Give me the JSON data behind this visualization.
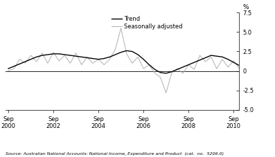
{
  "ylabel_right": "%",
  "source": "Source: Australian National Accounts: National Income, Expenditure and Product  (cat.  no.  5206.0)",
  "ylim": [
    -5.0,
    7.5
  ],
  "yticks": [
    -5.0,
    -2.5,
    0.0,
    2.5,
    5.0,
    7.5
  ],
  "ytick_labels": [
    "-5.0",
    "-2.5",
    "0",
    "2.5",
    "5.0",
    "7.5"
  ],
  "xtick_labels": [
    "Sep\n2000",
    "Sep\n2002",
    "Sep\n2004",
    "Sep\n2006",
    "Sep\n2008",
    "Sep\n2010"
  ],
  "xtick_positions": [
    0,
    8,
    16,
    24,
    32,
    40
  ],
  "trend_color": "#000000",
  "seasonal_color": "#b0b0b0",
  "background_color": "#ffffff",
  "legend_labels": [
    "Trend",
    "Seasonally adjusted"
  ],
  "trend": [
    0.3,
    0.6,
    0.9,
    1.2,
    1.5,
    1.8,
    2.0,
    2.1,
    2.2,
    2.2,
    2.1,
    2.0,
    1.9,
    1.8,
    1.7,
    1.6,
    1.5,
    1.6,
    1.8,
    2.1,
    2.4,
    2.6,
    2.5,
    2.1,
    1.5,
    0.8,
    0.2,
    -0.2,
    -0.3,
    -0.1,
    0.2,
    0.5,
    0.8,
    1.1,
    1.4,
    1.7,
    2.0,
    1.9,
    1.8,
    1.5,
    1.1,
    0.7
  ],
  "seasonal": [
    0.0,
    0.3,
    1.5,
    1.0,
    2.0,
    1.2,
    2.3,
    1.0,
    2.4,
    1.3,
    2.0,
    1.0,
    2.3,
    0.8,
    1.8,
    1.0,
    1.5,
    0.8,
    1.5,
    2.8,
    5.5,
    2.2,
    1.0,
    1.8,
    0.3,
    0.8,
    -0.3,
    -0.8,
    -2.8,
    -0.3,
    0.3,
    -0.3,
    0.8,
    0.2,
    2.0,
    1.2,
    1.8,
    0.3,
    1.5,
    0.5,
    1.3,
    0.3
  ]
}
